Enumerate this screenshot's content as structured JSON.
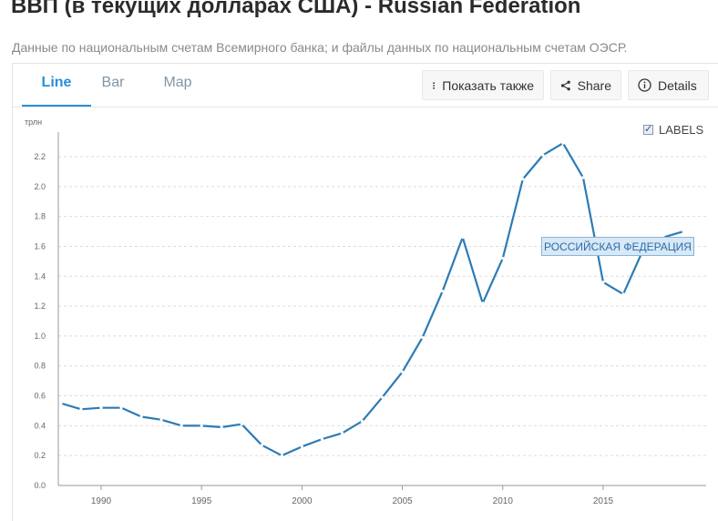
{
  "header": {
    "title": "ВВП (в текущих долларах США) - Russian Federation",
    "subtitle": "Данные по национальным счетам Всемирного банка; и файлы данных по национальным счетам ОЭСР."
  },
  "tabs": [
    {
      "label": "Line",
      "active": true
    },
    {
      "label": "Bar",
      "active": false
    },
    {
      "label": "Map",
      "active": false
    }
  ],
  "toolbar": {
    "show_also_label": "Показать также",
    "share_label": "Share",
    "details_label": "Details"
  },
  "labels_toggle": {
    "label": "LABELS",
    "checked": true
  },
  "colors": {
    "line": "#2d7bb5",
    "accent": "#2a8fd6",
    "grid": "#dcdcdc"
  },
  "chart_data": {
    "type": "line",
    "ylabel": "трлн",
    "ylim": [
      0,
      2.3
    ],
    "yticks": [
      0.0,
      0.2,
      0.4,
      0.6,
      0.8,
      1.0,
      1.2,
      1.4,
      1.6,
      1.8,
      2.0,
      2.2
    ],
    "ytick_labels": [
      "0.0",
      "0.2",
      "0.4",
      "0.6",
      "0.8",
      "1.0",
      "1.2",
      "1.4",
      "1.6",
      "1.8",
      "2.0",
      "2.2"
    ],
    "xlim": [
      1988,
      2019.5
    ],
    "xticks": [
      1990,
      1995,
      2000,
      2005,
      2010,
      2015
    ],
    "xtick_labels": [
      "1990",
      "1995",
      "2000",
      "2005",
      "2010",
      "2015"
    ],
    "grid": true,
    "series": [
      {
        "name": "РОССИЙСКАЯ ФЕДЕРАЦИЯ",
        "x": [
          1988,
          1989,
          1990,
          1991,
          1992,
          1993,
          1994,
          1995,
          1996,
          1997,
          1998,
          1999,
          2000,
          2001,
          2002,
          2003,
          2004,
          2005,
          2006,
          2007,
          2008,
          2009,
          2010,
          2011,
          2012,
          2013,
          2014,
          2015,
          2016,
          2017,
          2018,
          2019
        ],
        "values": [
          0.55,
          0.51,
          0.52,
          0.52,
          0.46,
          0.44,
          0.4,
          0.4,
          0.39,
          0.41,
          0.27,
          0.2,
          0.26,
          0.31,
          0.35,
          0.43,
          0.59,
          0.76,
          0.99,
          1.3,
          1.66,
          1.22,
          1.52,
          2.05,
          2.21,
          2.29,
          2.06,
          1.36,
          1.28,
          1.58,
          1.66,
          1.7
        ]
      }
    ],
    "callout": "РОССИЙСКАЯ ФЕДЕРАЦИЯ"
  }
}
